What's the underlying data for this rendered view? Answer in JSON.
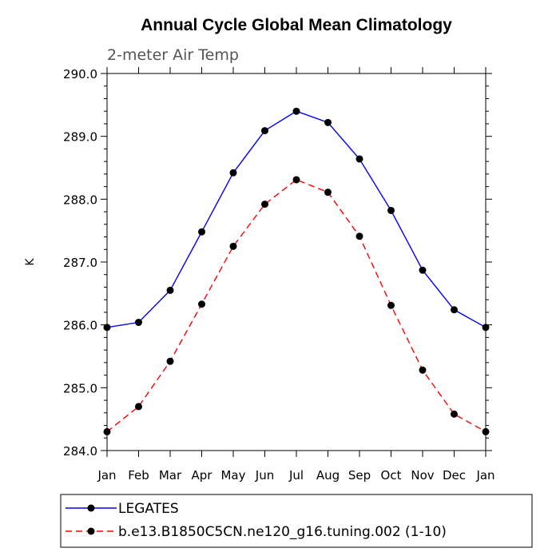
{
  "chart_data": {
    "type": "line",
    "title": "Annual Cycle Global Mean Climatology",
    "subtitle": "2-meter Air Temp",
    "ylabel": "K",
    "xlabel": "",
    "ylim": [
      284.0,
      290.0
    ],
    "y_ticks": [
      "284.0",
      "285.0",
      "286.0",
      "287.0",
      "288.0",
      "289.0",
      "290.0"
    ],
    "categories": [
      "Jan",
      "Feb",
      "Mar",
      "Apr",
      "May",
      "Jun",
      "Jul",
      "Aug",
      "Sep",
      "Oct",
      "Nov",
      "Dec",
      "Jan"
    ],
    "grid": false,
    "legend_position": "bottom",
    "series": [
      {
        "name": "LEGATES",
        "color": "#0000ff",
        "line_style": "solid",
        "marker": "filled-circle",
        "values": [
          285.96,
          286.04,
          286.55,
          287.48,
          288.42,
          289.09,
          289.4,
          289.22,
          288.64,
          287.82,
          286.87,
          286.24,
          285.96
        ]
      },
      {
        "name": "b.e13.B1850C5CN.ne120_g16.tuning.002 (1-10)",
        "color": "#ff0000",
        "line_style": "dashed",
        "marker": "filled-circle",
        "values": [
          284.3,
          284.7,
          285.42,
          286.33,
          287.25,
          287.92,
          288.31,
          288.11,
          287.41,
          286.31,
          285.28,
          284.58,
          284.3
        ]
      }
    ]
  }
}
